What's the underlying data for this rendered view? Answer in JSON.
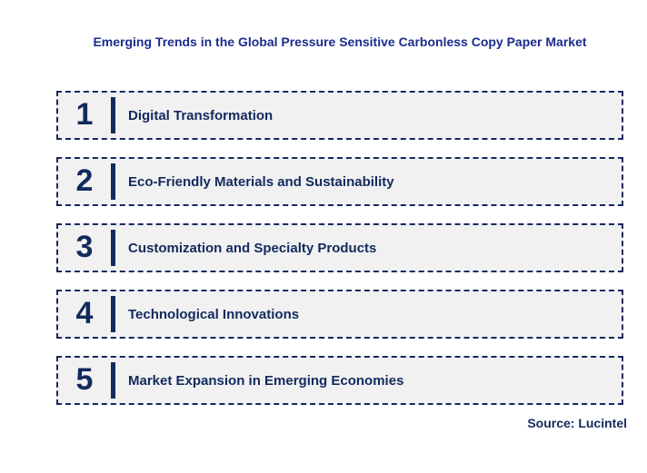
{
  "title": "Emerging Trends in the Global Pressure Sensitive Carbonless Copy Paper Market",
  "source": "Source: Lucintel",
  "colors": {
    "title": "#1b2c8c",
    "navy": "#122a5c",
    "box_background": "#f1f1f2",
    "box_border": "#16295e",
    "page_background": "#ffffff"
  },
  "trends": [
    {
      "number": "1",
      "label": "Digital Transformation"
    },
    {
      "number": "2",
      "label": "Eco-Friendly Materials and Sustainability"
    },
    {
      "number": "3",
      "label": "Customization and Specialty Products"
    },
    {
      "number": "4",
      "label": "Technological Innovations"
    },
    {
      "number": "5",
      "label": "Market Expansion in Emerging Economies"
    }
  ]
}
